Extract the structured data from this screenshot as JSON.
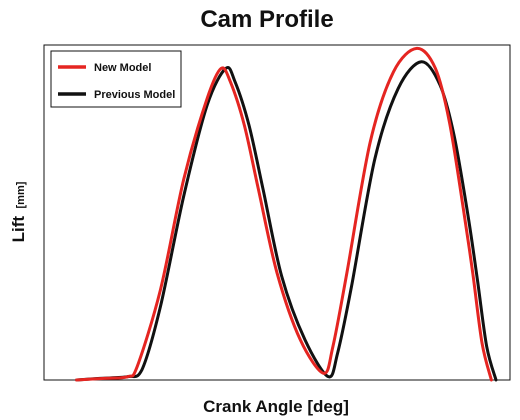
{
  "chart_data": {
    "type": "line",
    "title": "Cam Profile",
    "xlabel": "Crank Angle [deg]",
    "ylabel": "Lift",
    "ylabel_unit": "[mm]",
    "xlim": [
      0,
      100
    ],
    "ylim": [
      0,
      100
    ],
    "grid": false,
    "ticks": false,
    "legend": {
      "placement": "top-left",
      "entries": [
        "New Model",
        "Previous Model"
      ]
    },
    "colors": {
      "new_model": "#e52521",
      "previous_model": "#111111"
    },
    "series": [
      {
        "name": "New Model",
        "color": "#e52521",
        "x": [
          7,
          13,
          18,
          20,
          25,
          30,
          35,
          38,
          40,
          43,
          46,
          50,
          55,
          60,
          62,
          65,
          70,
          75,
          80,
          84,
          87,
          90,
          92,
          94,
          96
        ],
        "y": [
          0,
          0.5,
          1,
          4,
          27,
          60,
          84,
          93,
          89,
          76,
          57,
          32,
          12,
          2,
          10,
          32,
          71,
          92,
          99,
          93,
          77,
          51,
          32,
          11,
          0
        ]
      },
      {
        "name": "Previous Model",
        "color": "#111111",
        "x": [
          7,
          12,
          18,
          21,
          25,
          30,
          35,
          39,
          41,
          44,
          47,
          51,
          56,
          61,
          63,
          66,
          71,
          76,
          81,
          85,
          88,
          91,
          93,
          95,
          97
        ],
        "y": [
          0,
          0.5,
          1,
          3,
          22,
          55,
          82,
          93,
          89,
          76,
          57,
          31,
          12,
          1,
          8,
          28,
          66,
          87,
          95,
          88,
          73,
          49,
          30,
          10,
          0
        ]
      }
    ]
  }
}
